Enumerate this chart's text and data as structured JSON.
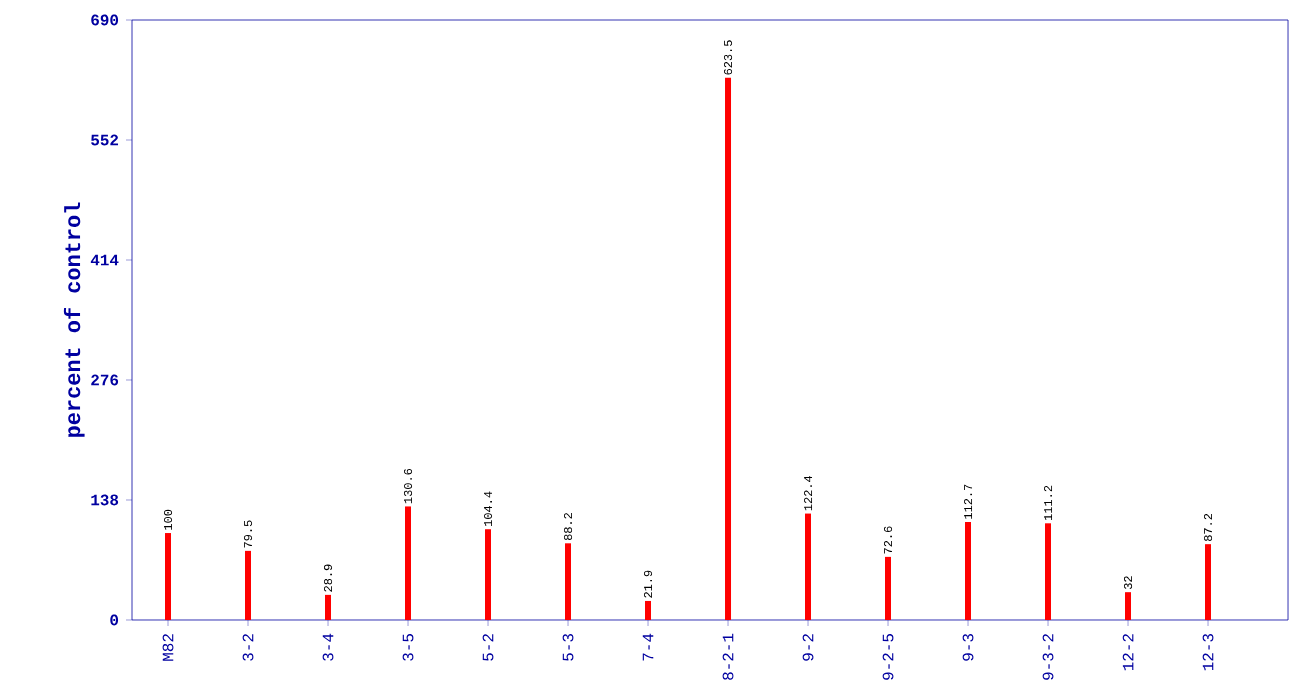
{
  "chart_data": {
    "type": "bar",
    "ylabel": "percent of control",
    "categories": [
      "M82",
      "3-2",
      "3-4",
      "3-5",
      "5-2",
      "5-3",
      "7-4",
      "8-2-1",
      "9-2",
      "9-2-5",
      "9-3",
      "9-3-2",
      "12-2",
      "12-3"
    ],
    "values": [
      100,
      79.5,
      28.9,
      130.6,
      104.4,
      88.2,
      21.9,
      623.5,
      122.4,
      72.6,
      112.7,
      111.2,
      32,
      87.2
    ],
    "color": "#ff0000",
    "ylim": [
      0,
      690
    ],
    "yticks": [
      0,
      138,
      276,
      414,
      552,
      690
    ],
    "data_labels": true
  }
}
